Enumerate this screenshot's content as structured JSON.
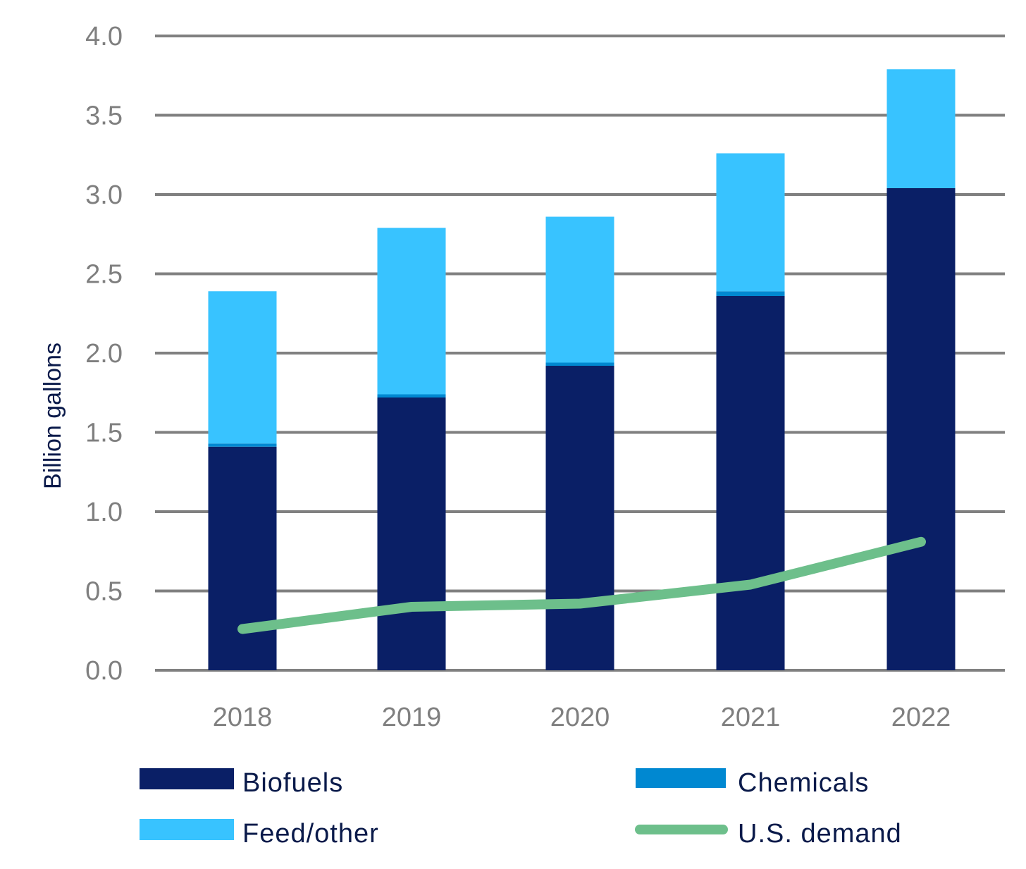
{
  "chart_data": {
    "type": "bar",
    "stacked": true,
    "title": "",
    "xlabel": "",
    "ylabel": "Billion gallons",
    "ylim": [
      0,
      4.0
    ],
    "yticks": [
      "0.0",
      "0.5",
      "1.0",
      "1.5",
      "2.0",
      "2.5",
      "3.0",
      "3.5",
      "4.0"
    ],
    "grid": true,
    "legend_position": "bottom",
    "categories": [
      "2018",
      "2019",
      "2020",
      "2021",
      "2022"
    ],
    "series": [
      {
        "name": "Biofuels",
        "type": "bar",
        "color": "#0a1f66",
        "values": [
          1.41,
          1.72,
          1.92,
          2.36,
          3.04
        ]
      },
      {
        "name": "Chemicals",
        "type": "bar",
        "color": "#0088d1",
        "values": [
          0.02,
          0.02,
          0.02,
          0.03,
          0.0
        ]
      },
      {
        "name": "Feed/other",
        "type": "bar",
        "color": "#38c3ff",
        "values": [
          0.96,
          1.05,
          0.92,
          0.87,
          0.75
        ]
      },
      {
        "name": "U.S. demand",
        "type": "line",
        "color": "#6dbf8b",
        "values": [
          0.26,
          0.4,
          0.42,
          0.54,
          0.81
        ]
      }
    ]
  }
}
